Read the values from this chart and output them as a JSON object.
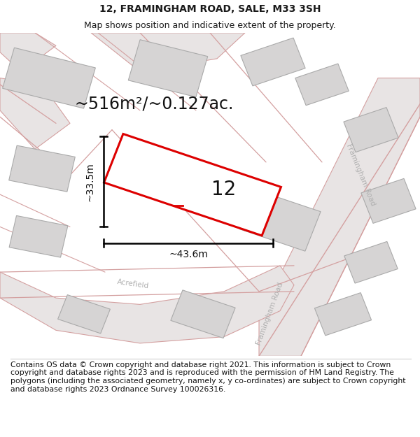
{
  "title": "12, FRAMINGHAM ROAD, SALE, M33 3SH",
  "subtitle": "Map shows position and indicative extent of the property.",
  "footer": "Contains OS data © Crown copyright and database right 2021. This information is subject to Crown copyright and database rights 2023 and is reproduced with the permission of HM Land Registry. The polygons (including the associated geometry, namely x, y co-ordinates) are subject to Crown copyright and database rights 2023 Ordnance Survey 100026316.",
  "area_label": "~516m²/~0.127ac.",
  "width_label": "~43.6m",
  "height_label": "~33.5m",
  "property_number": "12",
  "map_bg": "#f0eeee",
  "building_fill": "#d6d4d4",
  "building_edge": "#aaaaaa",
  "road_line_color": "#d4a0a0",
  "highlight_color": "#dd0000",
  "title_fontsize": 10,
  "subtitle_fontsize": 9,
  "footer_fontsize": 7.8,
  "label_color": "#cccccc"
}
